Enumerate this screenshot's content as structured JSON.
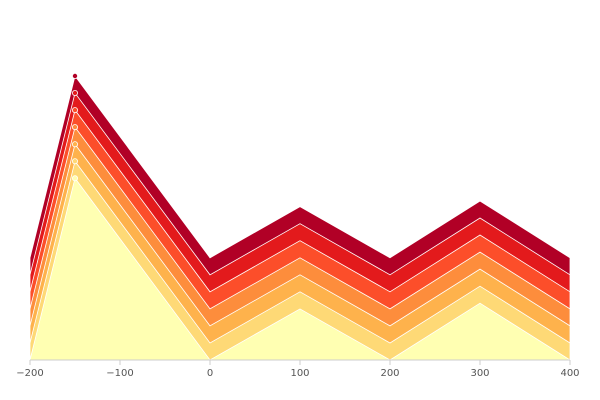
{
  "chart_data": {
    "type": "area",
    "x": [
      -200,
      -150,
      0,
      100,
      200,
      300,
      400
    ],
    "xlim": [
      -200,
      400
    ],
    "ylim": [
      0,
      50
    ],
    "x_ticks": [
      {
        "value": -200,
        "label": "−200"
      },
      {
        "value": -100,
        "label": "−100"
      },
      {
        "value": 0,
        "label": "0"
      },
      {
        "value": 100,
        "label": "100"
      },
      {
        "value": 200,
        "label": "200"
      },
      {
        "value": 300,
        "label": "300"
      },
      {
        "value": 400,
        "label": "400"
      }
    ],
    "grid": false,
    "series": [
      {
        "color": "#ffffb2",
        "values": [
          0,
          32,
          0,
          9,
          0,
          10,
          0
        ],
        "marker_on_peak": true
      },
      {
        "color": "#fed976",
        "values": [
          3,
          35,
          3,
          12,
          3,
          13,
          3
        ],
        "marker_on_peak": true
      },
      {
        "color": "#feb24c",
        "values": [
          6,
          38,
          6,
          15,
          6,
          16,
          6
        ],
        "marker_on_peak": true
      },
      {
        "color": "#fd8d3c",
        "values": [
          9,
          41,
          9,
          18,
          9,
          19,
          9
        ],
        "marker_on_peak": true
      },
      {
        "color": "#fc4e2a",
        "values": [
          12,
          44,
          12,
          21,
          12,
          22,
          12
        ],
        "marker_on_peak": true
      },
      {
        "color": "#e31a1c",
        "values": [
          15,
          47,
          15,
          24,
          15,
          25,
          15
        ],
        "marker_on_peak": true
      },
      {
        "color": "#b10026",
        "values": [
          18,
          50,
          18,
          27,
          18,
          28,
          18
        ],
        "marker_on_peak": true
      }
    ]
  }
}
